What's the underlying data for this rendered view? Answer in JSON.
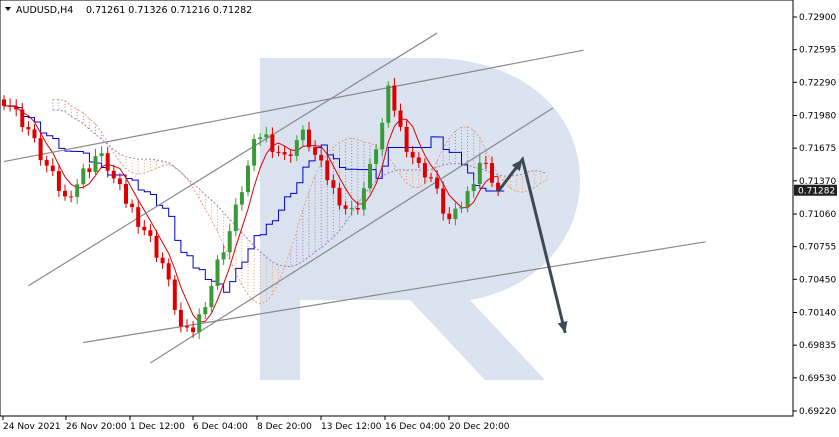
{
  "header": {
    "symbol_timeframe": "AUDUSD,H4",
    "ohlc": "0.71261 0.71326 0.71216 0.71282",
    "dropdown_icon": "triangle-down-icon"
  },
  "current_price_label": "0.71282",
  "watermark_icon": "brand-r-logo-icon",
  "colors": {
    "bull_candle": "#3a9a3a",
    "bear_candle": "#dd0000",
    "tenkan": "#0000cc",
    "kijun": "#dd0000",
    "cloud_a": "#9a80c0",
    "cloud_b": "#f0a070",
    "trendline": "#8a8a8a",
    "forecast_arrow": "#3d4a56",
    "price_tag": "#202020"
  },
  "chart_data": {
    "type": "candlestick",
    "y_tick_labels": [
      "0.72900",
      "0.72595",
      "0.72290",
      "0.71980",
      "0.71675",
      "0.71370",
      "0.71060",
      "0.70755",
      "0.70450",
      "0.70140",
      "0.69835",
      "0.69530",
      "0.69220"
    ],
    "ylim": [
      0.6922,
      0.729
    ],
    "x_tick_labels": [
      "24 Nov 2021",
      "26 Nov 20:00",
      "1 Dec 12:00",
      "6 Dec 04:00",
      "8 Dec 20:00",
      "13 Dec 12:00",
      "16 Dec 04:00",
      "20 Dec 20:00"
    ],
    "last_price": 0.71282,
    "trendlines": [
      {
        "name": "channel-upper",
        "from": [
          0,
          0.7155
        ],
        "to": [
          95,
          0.7259
        ]
      },
      {
        "name": "channel-lower",
        "from": [
          13,
          0.6986
        ],
        "to": [
          115,
          0.708
        ]
      },
      {
        "name": "rising-upper",
        "from": [
          4,
          0.7039
        ],
        "to": [
          71,
          0.7275
        ]
      },
      {
        "name": "rising-lower",
        "from": [
          24,
          0.6967
        ],
        "to": [
          90,
          0.7205
        ]
      }
    ],
    "forecast_path": [
      [
        81,
        0.7127
      ],
      [
        85,
        0.7157
      ],
      [
        92,
        0.6995
      ]
    ],
    "candle_seeds": [
      0.7213,
      0.7208,
      0.72,
      0.7192,
      0.7185,
      0.7172,
      0.716,
      0.715,
      0.714,
      0.713,
      0.712,
      0.7128,
      0.7135,
      0.7145,
      0.715,
      0.716,
      0.7158,
      0.715,
      0.7138,
      0.7128,
      0.7118,
      0.711,
      0.71,
      0.7092,
      0.7082,
      0.707,
      0.706,
      0.704,
      0.702,
      0.7,
      0.6994,
      0.6998,
      0.701,
      0.7025,
      0.704,
      0.706,
      0.7075,
      0.709,
      0.711,
      0.713,
      0.715,
      0.717,
      0.718,
      0.7178,
      0.717,
      0.7165,
      0.7158,
      0.7165,
      0.7175,
      0.718,
      0.7172,
      0.716,
      0.715,
      0.714,
      0.7128,
      0.712,
      0.7112,
      0.7108,
      0.7115,
      0.713,
      0.7148,
      0.717,
      0.719,
      0.722,
      0.7205,
      0.7185,
      0.717,
      0.716,
      0.715,
      0.7145,
      0.714,
      0.7125,
      0.711,
      0.71,
      0.7105,
      0.7115,
      0.7125,
      0.714,
      0.7155,
      0.715,
      0.714,
      0.7128
    ]
  }
}
